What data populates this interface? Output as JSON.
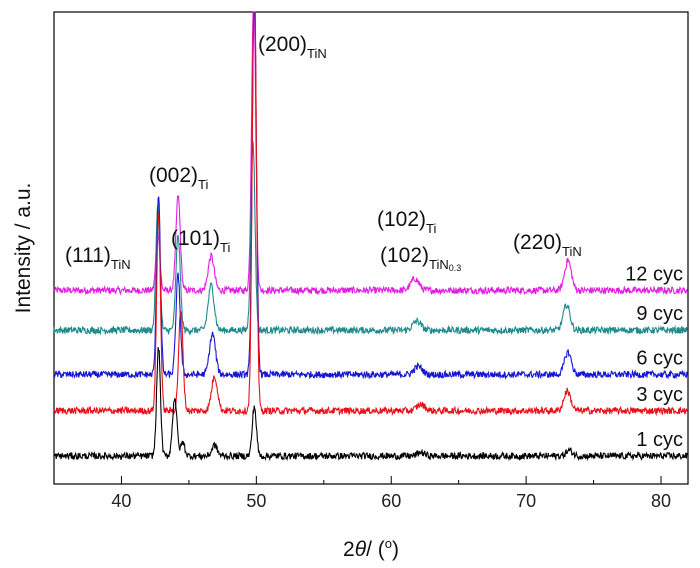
{
  "chart_data": {
    "type": "line",
    "xlabel": "2θ/ (°)",
    "ylabel": "Intensity / a.u.",
    "xlim": [
      35,
      82
    ],
    "xticks": [
      40,
      50,
      60,
      70,
      80
    ],
    "yaxis_ticks": false,
    "grid": false,
    "legend": "none",
    "peak_labels": [
      {
        "hkl": "(111)",
        "phase": "TiN",
        "x": 42.7
      },
      {
        "hkl": "(002)",
        "phase": "Ti",
        "x": 44.1
      },
      {
        "hkl": "(101)",
        "phase": "Ti",
        "x": 46.6
      },
      {
        "hkl": "(200)",
        "phase": "TiN",
        "x": 49.8
      },
      {
        "hkl": "(102)",
        "phase": "Ti",
        "x": 61.8
      },
      {
        "hkl": "(102)",
        "phase": "TiN0.3",
        "x": 61.8
      },
      {
        "hkl": "(220)",
        "phase": "TiN",
        "x": 73.1
      }
    ],
    "series": [
      {
        "name": "1 cyc",
        "color": "#000000",
        "baseline": 0,
        "peaks": [
          {
            "x": 42.75,
            "h": 12,
            "w": 0.14
          },
          {
            "x": 43.95,
            "h": 6.5,
            "w": 0.16
          },
          {
            "x": 44.55,
            "h": 1.5,
            "w": 0.15
          },
          {
            "x": 46.9,
            "h": 1.2,
            "w": 0.2
          },
          {
            "x": 49.85,
            "h": 5.5,
            "w": 0.15
          },
          {
            "x": 62.2,
            "h": 0.4,
            "w": 0.25
          },
          {
            "x": 73.2,
            "h": 0.6,
            "w": 0.25
          }
        ]
      },
      {
        "name": "3 cyc",
        "color": "#e8101a",
        "baseline": 5.0,
        "peaks": [
          {
            "x": 42.75,
            "h": 22,
            "w": 0.14
          },
          {
            "x": 44.4,
            "h": 11,
            "w": 0.16
          },
          {
            "x": 46.9,
            "h": 3.8,
            "w": 0.22
          },
          {
            "x": 49.85,
            "h": 49,
            "w": 0.15
          },
          {
            "x": 62.2,
            "h": 0.7,
            "w": 0.3
          },
          {
            "x": 73.05,
            "h": 2.2,
            "w": 0.25
          }
        ]
      },
      {
        "name": "6 cyc",
        "color": "#1515d4",
        "baseline": 9.0,
        "peaks": [
          {
            "x": 42.75,
            "h": 20,
            "w": 0.14
          },
          {
            "x": 44.2,
            "h": 11,
            "w": 0.16
          },
          {
            "x": 46.75,
            "h": 4.5,
            "w": 0.22
          },
          {
            "x": 49.85,
            "h": 43,
            "w": 0.15
          },
          {
            "x": 62.0,
            "h": 0.9,
            "w": 0.3
          },
          {
            "x": 73.1,
            "h": 2.5,
            "w": 0.25
          }
        ]
      },
      {
        "name": "9 cyc",
        "color": "#1f8a8a",
        "baseline": 13.9,
        "peaks": [
          {
            "x": 42.7,
            "h": 14,
            "w": 0.14
          },
          {
            "x": 44.2,
            "h": 10.5,
            "w": 0.16
          },
          {
            "x": 46.65,
            "h": 5.0,
            "w": 0.22
          },
          {
            "x": 49.75,
            "h": 21,
            "w": 0.15
          },
          {
            "x": 61.9,
            "h": 1.0,
            "w": 0.3
          },
          {
            "x": 73.0,
            "h": 2.8,
            "w": 0.25
          }
        ]
      },
      {
        "name": "12 cyc",
        "color": "#e020e0",
        "baseline": 18.3,
        "peaks": [
          {
            "x": 42.7,
            "h": 6.5,
            "w": 0.14
          },
          {
            "x": 44.2,
            "h": 10.5,
            "w": 0.16
          },
          {
            "x": 46.65,
            "h": 3.8,
            "w": 0.22
          },
          {
            "x": 49.8,
            "h": 33,
            "w": 0.15
          },
          {
            "x": 61.75,
            "h": 1.3,
            "w": 0.3
          },
          {
            "x": 73.1,
            "h": 3.3,
            "w": 0.25
          }
        ]
      }
    ]
  }
}
